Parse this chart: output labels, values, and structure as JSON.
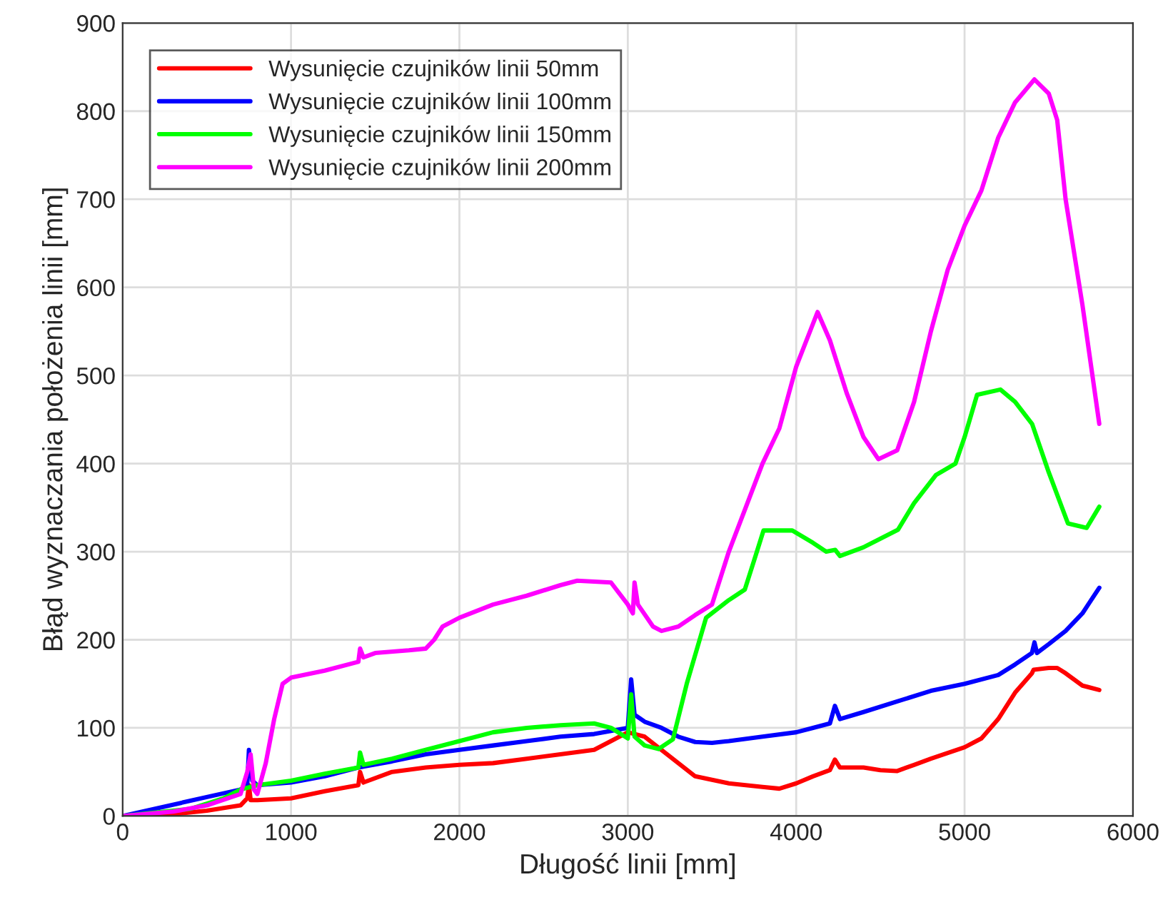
{
  "chart_data": {
    "type": "line",
    "xlabel": "Długość linii [mm]",
    "ylabel": "Błąd wyznaczania położenia linii [mm]",
    "xlim": [
      0,
      6000
    ],
    "ylim": [
      0,
      900
    ],
    "xticks": [
      0,
      1000,
      2000,
      3000,
      4000,
      5000,
      6000
    ],
    "yticks": [
      0,
      100,
      200,
      300,
      400,
      500,
      600,
      700,
      800,
      900
    ],
    "grid": true,
    "legend": "top left",
    "line_style": "solid",
    "marker": "none",
    "series": [
      {
        "name": "Wysunięcie czujników linii 50mm",
        "color": "#ff0000",
        "x": [
          0,
          300,
          500,
          700,
          740,
          750,
          760,
          800,
          1000,
          1200,
          1400,
          1410,
          1430,
          1600,
          1800,
          2000,
          2200,
          2400,
          2600,
          2800,
          2900,
          3000,
          3100,
          3200,
          3300,
          3400,
          3500,
          3600,
          3800,
          3900,
          4000,
          4100,
          4200,
          4230,
          4260,
          4400,
          4500,
          4600,
          4700,
          4800,
          5000,
          5100,
          5200,
          5300,
          5400,
          5410,
          5500,
          5550,
          5600,
          5700,
          5800
        ],
        "values": [
          0,
          2,
          6,
          12,
          20,
          35,
          18,
          18,
          20,
          28,
          35,
          50,
          38,
          50,
          55,
          58,
          60,
          65,
          70,
          75,
          85,
          95,
          90,
          75,
          60,
          45,
          41,
          37,
          33,
          31,
          37,
          45,
          52,
          64,
          55,
          55,
          52,
          51,
          58,
          65,
          78,
          88,
          110,
          140,
          162,
          166,
          168,
          168,
          162,
          148,
          143
        ]
      },
      {
        "name": "Wysunięcie czujników linii 100mm",
        "color": "#0000ff",
        "x": [
          0,
          700,
          740,
          750,
          770,
          800,
          1000,
          1200,
          1400,
          1600,
          1800,
          2000,
          2200,
          2400,
          2600,
          2800,
          3000,
          3020,
          3040,
          3100,
          3200,
          3300,
          3400,
          3500,
          3600,
          3800,
          4000,
          4100,
          4200,
          4230,
          4260,
          4400,
          4600,
          4800,
          5000,
          5200,
          5300,
          5400,
          5415,
          5430,
          5500,
          5600,
          5700,
          5800
        ],
        "values": [
          0,
          30,
          35,
          75,
          40,
          35,
          38,
          45,
          55,
          62,
          70,
          75,
          80,
          85,
          90,
          93,
          100,
          155,
          115,
          107,
          100,
          90,
          84,
          83,
          85,
          90,
          95,
          100,
          105,
          125,
          110,
          118,
          130,
          142,
          150,
          160,
          172,
          185,
          197,
          185,
          195,
          210,
          230,
          259
        ]
      },
      {
        "name": "Wysunięcie czujników linii 150mm",
        "color": "#00ff00",
        "x": [
          0,
          400,
          600,
          700,
          800,
          1000,
          1200,
          1400,
          1410,
          1430,
          1600,
          1800,
          2000,
          2200,
          2400,
          2600,
          2800,
          2900,
          3000,
          3020,
          3040,
          3100,
          3183,
          3268,
          3350,
          3465,
          3600,
          3695,
          3750,
          3806,
          3977,
          4100,
          4178,
          4232,
          4260,
          4400,
          4605,
          4700,
          4830,
          4946,
          5000,
          5074,
          5213,
          5300,
          5401,
          5500,
          5614,
          5725,
          5800
        ],
        "values": [
          0,
          8,
          20,
          30,
          35,
          40,
          48,
          55,
          72,
          58,
          65,
          75,
          85,
          95,
          100,
          103,
          105,
          100,
          88,
          138,
          90,
          80,
          76,
          87,
          150,
          225,
          245,
          257,
          290,
          324,
          324,
          310,
          300,
          302,
          295,
          305,
          325,
          355,
          387,
          400,
          430,
          478,
          484,
          470,
          445,
          390,
          332,
          327,
          351
        ]
      },
      {
        "name": "Wysunięcie czujników linii 200mm",
        "color": "#ff00ff",
        "x": [
          0,
          300,
          500,
          700,
          740,
          760,
          780,
          800,
          850,
          900,
          950,
          1000,
          1200,
          1400,
          1410,
          1430,
          1500,
          1700,
          1800,
          1850,
          1900,
          2000,
          2200,
          2400,
          2600,
          2700,
          2900,
          3000,
          3030,
          3040,
          3060,
          3150,
          3200,
          3300,
          3400,
          3500,
          3600,
          3700,
          3800,
          3900,
          4000,
          4127,
          4200,
          4300,
          4400,
          4488,
          4600,
          4700,
          4800,
          4900,
          5000,
          5100,
          5200,
          5300,
          5415,
          5500,
          5550,
          5600,
          5700,
          5800
        ],
        "values": [
          0,
          5,
          12,
          25,
          50,
          70,
          30,
          25,
          60,
          110,
          150,
          157,
          165,
          175,
          190,
          180,
          185,
          188,
          190,
          200,
          215,
          225,
          240,
          250,
          262,
          267,
          265,
          240,
          230,
          265,
          240,
          215,
          210,
          215,
          228,
          240,
          300,
          350,
          400,
          440,
          510,
          572,
          540,
          480,
          430,
          405,
          415,
          470,
          550,
          620,
          670,
          710,
          770,
          810,
          836,
          820,
          790,
          700,
          580,
          445
        ]
      }
    ]
  }
}
